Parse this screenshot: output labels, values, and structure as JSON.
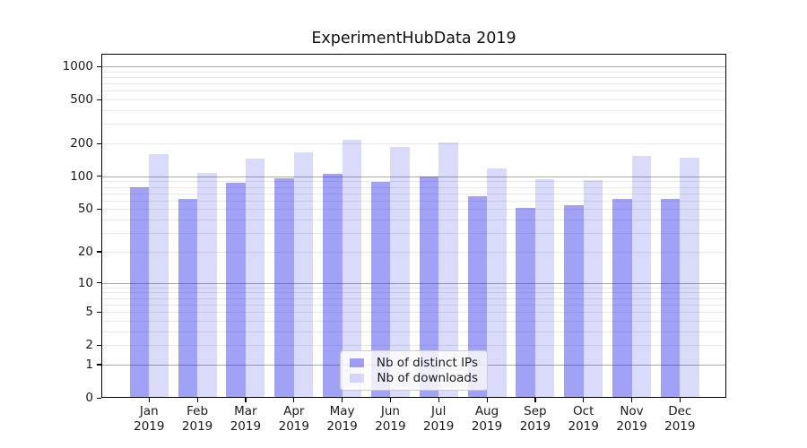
{
  "chart_data": {
    "type": "bar",
    "title": "ExperimentHubData 2019",
    "categories": [
      "Jan",
      "Feb",
      "Mar",
      "Apr",
      "May",
      "Jun",
      "Jul",
      "Aug",
      "Sep",
      "Oct",
      "Nov",
      "Dec"
    ],
    "category_year": "2019",
    "series": [
      {
        "name": "Nb of distinct IPs",
        "key": "distinct-ips",
        "color_base": "#1e1ee6",
        "alpha": 0.42,
        "rendered_color": "#a2a2f0",
        "values": [
          80,
          62,
          87,
          97,
          106,
          89,
          100,
          66,
          51,
          54,
          62,
          62
        ]
      },
      {
        "name": "Nb of downloads",
        "key": "downloads",
        "color_base": "#1e1ee6",
        "alpha": 0.165,
        "rendered_color": "#dcdcf9",
        "values": [
          160,
          107,
          145,
          165,
          215,
          185,
          203,
          118,
          95,
          93,
          155,
          149
        ]
      }
    ],
    "yscale": "log10(1+x)",
    "ytick_values": [
      0,
      1,
      2,
      5,
      10,
      20,
      50,
      100,
      200,
      500,
      1000
    ],
    "ylim": [
      0,
      1300
    ],
    "xlabel": "",
    "ylabel": "",
    "grid": "horizontal major+minor",
    "legend_position": "lower-center"
  },
  "colors": {
    "grid_major": "#aaaaaa",
    "grid_minor": "#e8e8e8",
    "axis": "#000000",
    "text": "#1a1a1a",
    "legend_border": "#cccccc",
    "legend_background": "rgba(255,255,255,0.8)",
    "background": "#ffffff"
  }
}
